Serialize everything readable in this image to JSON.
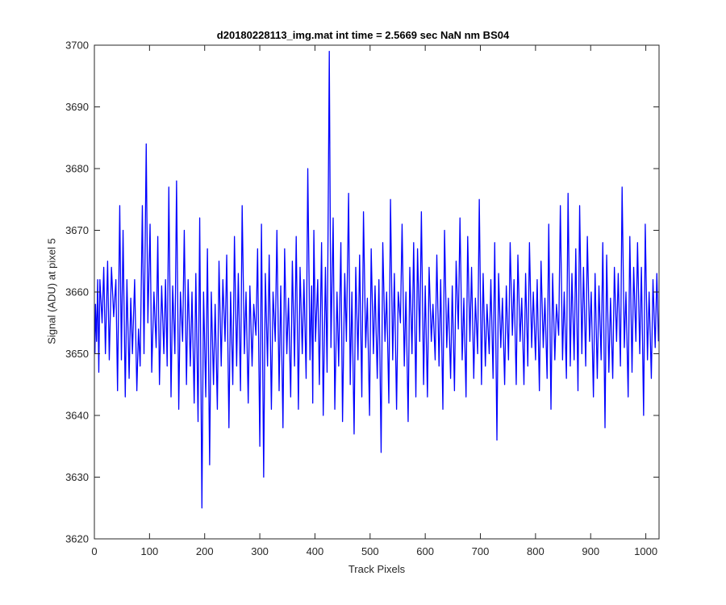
{
  "chart_data": {
    "type": "line",
    "title": "d20180228113_img.mat int time = 2.5669 sec  NaN nm BS04",
    "xlabel": "Track Pixels",
    "ylabel": "Signal (ADU) at pixel 5",
    "xlim": [
      0,
      1024
    ],
    "ylim": [
      3620,
      3700
    ],
    "xticks": [
      0,
      100,
      200,
      300,
      400,
      500,
      600,
      700,
      800,
      900,
      1000
    ],
    "yticks": [
      3620,
      3630,
      3640,
      3650,
      3660,
      3670,
      3680,
      3690,
      3700
    ],
    "box": true,
    "grid": false,
    "line_color": "#0000ff",
    "series": [
      {
        "points_x": [
          1,
          2,
          4,
          6,
          8,
          10,
          14,
          17,
          20,
          24,
          27,
          31,
          35,
          39,
          42,
          46,
          49,
          52,
          56,
          59,
          63,
          66,
          69,
          73,
          77,
          80,
          83,
          87,
          90,
          94,
          97,
          101,
          104,
          108,
          112,
          115,
          118,
          122,
          126,
          129,
          132,
          135,
          139,
          142,
          146,
          149,
          153,
          156,
          160,
          163,
          167,
          170,
          174,
          177,
          181,
          184,
          188,
          191,
          195,
          198,
          202,
          205,
          209,
          212,
          216,
          219,
          223,
          226,
          230,
          233,
          237,
          240,
          244,
          247,
          251,
          254,
          258,
          261,
          265,
          268,
          272,
          275,
          279,
          282,
          286,
          289,
          293,
          296,
          300,
          303,
          307,
          310,
          314,
          317,
          321,
          324,
          328,
          331,
          335,
          338,
          342,
          345,
          349,
          352,
          356,
          359,
          363,
          366,
          370,
          373,
          377,
          380,
          384,
          387,
          391,
          394,
          396,
          398,
          401,
          405,
          408,
          412,
          415,
          419,
          422,
          426,
          429,
          433,
          436,
          440,
          443,
          447,
          450,
          454,
          457,
          461,
          464,
          467,
          471,
          474,
          478,
          481,
          485,
          488,
          492,
          495,
          499,
          502,
          506,
          509,
          513,
          516,
          520,
          523,
          527,
          530,
          534,
          537,
          541,
          544,
          548,
          551,
          555,
          558,
          562,
          565,
          569,
          572,
          576,
          579,
          583,
          586,
          590,
          593,
          597,
          600,
          604,
          607,
          611,
          614,
          618,
          621,
          625,
          628,
          632,
          635,
          639,
          642,
          646,
          649,
          653,
          656,
          660,
          663,
          667,
          670,
          674,
          677,
          681,
          684,
          688,
          691,
          695,
          698,
          702,
          705,
          709,
          712,
          716,
          719,
          723,
          726,
          730,
          733,
          737,
          740,
          744,
          747,
          751,
          754,
          758,
          761,
          765,
          768,
          772,
          775,
          779,
          782,
          786,
          789,
          793,
          796,
          800,
          803,
          807,
          810,
          814,
          817,
          821,
          824,
          828,
          831,
          835,
          838,
          842,
          845,
          849,
          852,
          856,
          859,
          863,
          866,
          870,
          873,
          877,
          880,
          884,
          887,
          891,
          894,
          898,
          901,
          905,
          908,
          912,
          915,
          919,
          922,
          926,
          929,
          933,
          936,
          940,
          943,
          947,
          950,
          954,
          957,
          961,
          964,
          968,
          971,
          975,
          978,
          982,
          985,
          989,
          992,
          996,
          999,
          1003,
          1006,
          1010,
          1013,
          1017,
          1020,
          1023
        ],
        "points_y": [
          3650,
          3658,
          3652,
          3662,
          3647,
          3662,
          3655,
          3664,
          3650,
          3665,
          3649,
          3664,
          3656,
          3662,
          3644,
          3674,
          3649,
          3670,
          3643,
          3662,
          3646,
          3659,
          3650,
          3662,
          3644,
          3654,
          3648,
          3674,
          3650,
          3684,
          3655,
          3671,
          3647,
          3660,
          3651,
          3669,
          3645,
          3661,
          3650,
          3662,
          3648,
          3677,
          3643,
          3661,
          3650,
          3678,
          3641,
          3660,
          3652,
          3670,
          3645,
          3662,
          3648,
          3660,
          3642,
          3663,
          3639,
          3672,
          3625,
          3660,
          3643,
          3667,
          3632,
          3660,
          3645,
          3658,
          3641,
          3665,
          3648,
          3662,
          3652,
          3666,
          3638,
          3660,
          3645,
          3669,
          3648,
          3663,
          3644,
          3674,
          3650,
          3660,
          3642,
          3661,
          3648,
          3658,
          3653,
          3667,
          3635,
          3671,
          3630,
          3663,
          3648,
          3666,
          3641,
          3660,
          3652,
          3670,
          3644,
          3661,
          3638,
          3667,
          3650,
          3659,
          3643,
          3665,
          3648,
          3669,
          3641,
          3664,
          3650,
          3662,
          3646,
          3680,
          3649,
          3661,
          3642,
          3670,
          3652,
          3662,
          3645,
          3668,
          3640,
          3664,
          3647,
          3699,
          3651,
          3672,
          3641,
          3660,
          3648,
          3668,
          3639,
          3663,
          3652,
          3676,
          3645,
          3660,
          3637,
          3664,
          3649,
          3666,
          3643,
          3673,
          3651,
          3659,
          3640,
          3667,
          3650,
          3661,
          3646,
          3662,
          3634,
          3668,
          3652,
          3660,
          3642,
          3675,
          3649,
          3663,
          3641,
          3660,
          3655,
          3671,
          3648,
          3660,
          3639,
          3664,
          3650,
          3668,
          3643,
          3667,
          3652,
          3673,
          3645,
          3661,
          3643,
          3664,
          3652,
          3658,
          3649,
          3666,
          3648,
          3662,
          3641,
          3670,
          3651,
          3659,
          3646,
          3661,
          3644,
          3665,
          3654,
          3672,
          3649,
          3659,
          3643,
          3669,
          3652,
          3664,
          3646,
          3659,
          3650,
          3675,
          3645,
          3663,
          3648,
          3658,
          3650,
          3662,
          3646,
          3668,
          3636,
          3663,
          3651,
          3659,
          3645,
          3661,
          3649,
          3668,
          3653,
          3662,
          3645,
          3666,
          3652,
          3659,
          3645,
          3663,
          3648,
          3668,
          3651,
          3660,
          3649,
          3662,
          3644,
          3665,
          3651,
          3659,
          3646,
          3671,
          3641,
          3663,
          3649,
          3658,
          3653,
          3674,
          3649,
          3660,
          3646,
          3676,
          3648,
          3663,
          3649,
          3667,
          3644,
          3674,
          3650,
          3664,
          3648,
          3669,
          3652,
          3660,
          3643,
          3663,
          3646,
          3661,
          3649,
          3668,
          3638,
          3666,
          3647,
          3659,
          3646,
          3664,
          3652,
          3663,
          3648,
          3677,
          3651,
          3660,
          3643,
          3669,
          3647,
          3664,
          3652,
          3668,
          3650,
          3664,
          3640,
          3671,
          3649,
          3660,
          3646,
          3662,
          3651,
          3663,
          3652,
          3665,
          3652,
          3670,
          3650,
          3659,
          3650,
          3658
        ]
      }
    ]
  }
}
